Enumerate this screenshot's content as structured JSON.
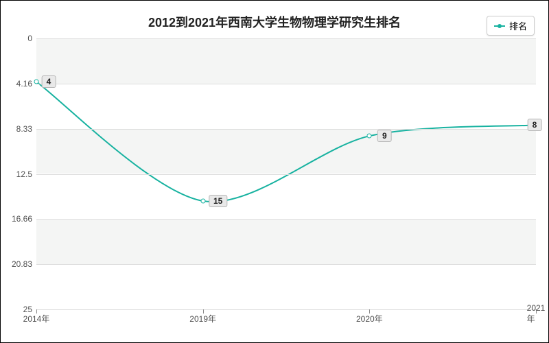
{
  "chart": {
    "type": "line",
    "title": "2012到2021年西南大学生物物理学研究生排名",
    "title_fontsize": 18,
    "title_color": "#222222",
    "background_color": "#ffffff",
    "plot_background_even": "#f4f5f4",
    "plot_background_odd": "#ffffff",
    "grid_color": "#dddddd",
    "axis_text_color": "#4f4f4f",
    "border_color": "#000000",
    "legend": {
      "label": "排名",
      "color": "#17b2a0",
      "border_color": "#cccccc",
      "bg": "#ffffff"
    },
    "y_axis": {
      "min": 0,
      "max": 25,
      "ticks": [
        0,
        4.16,
        8.33,
        12.5,
        16.66,
        20.83,
        25
      ],
      "tick_labels": [
        "0",
        "4.16",
        "8.33",
        "12.5",
        "16.66",
        "20.83",
        "25"
      ],
      "inverted": true,
      "fontsize": 12
    },
    "x_axis": {
      "categories": [
        "2014年",
        "2019年",
        "2020年",
        "2021年"
      ],
      "fontsize": 12
    },
    "series": {
      "name": "排名",
      "color": "#17b2a0",
      "line_width": 2,
      "marker_size": 7,
      "marker_fill": "#ffffff",
      "values": [
        4,
        15,
        9,
        8
      ],
      "value_labels": [
        "4",
        "15",
        "9",
        "8"
      ],
      "label_bg": "#e9e9e9",
      "label_border": "#b5b5b5"
    }
  }
}
